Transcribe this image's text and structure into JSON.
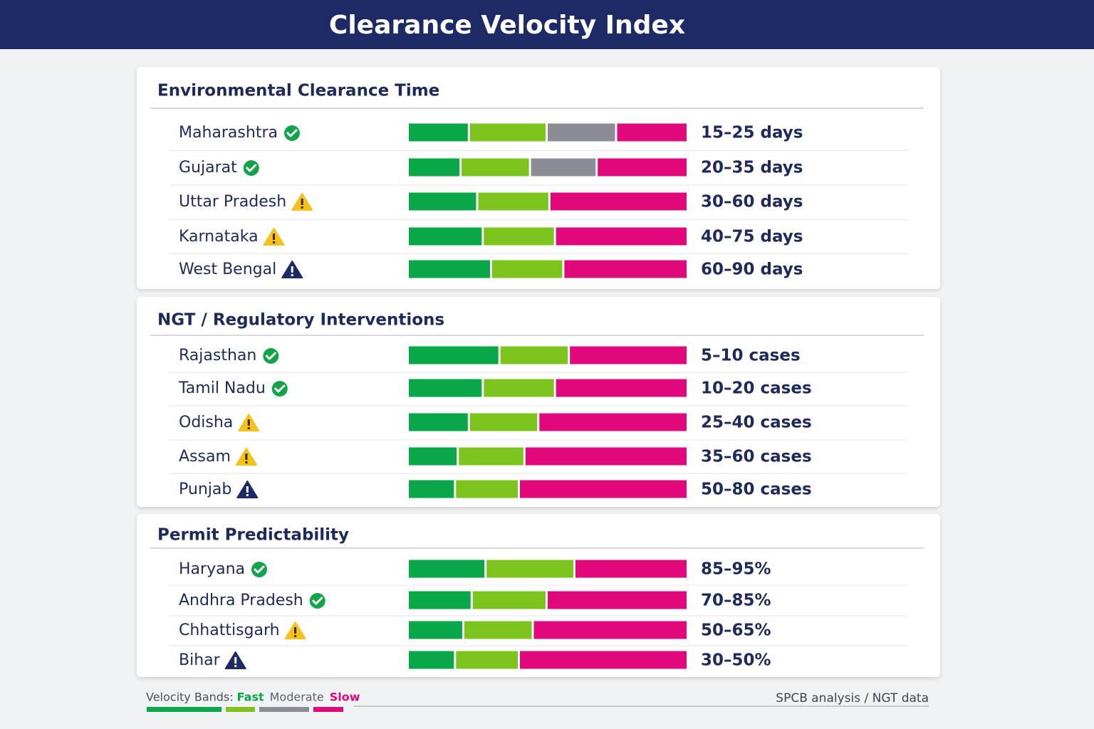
{
  "header": {
    "title": "Clearance Velocity Index"
  },
  "sections": [
    {
      "title": "Environmental Clearance Time",
      "rows": [
        {
          "label": "Maharashtra",
          "status": "ok",
          "bands": [
            0,
            1,
            2,
            3
          ],
          "segments": [
            22,
            28,
            25,
            25
          ],
          "value": "15–25 days"
        },
        {
          "label": "Gujarat",
          "status": "ok",
          "bands": [
            0,
            1,
            2,
            3
          ],
          "segments": [
            19,
            25,
            24,
            32
          ],
          "value": "20–35 days"
        },
        {
          "label": "Uttar Pradesh",
          "status": "warn",
          "bands": [
            0,
            1,
            3
          ],
          "segments": [
            25,
            26,
            49
          ],
          "value": "30–60 days"
        },
        {
          "label": "Karnataka",
          "status": "warn",
          "bands": [
            0,
            1,
            3
          ],
          "segments": [
            27,
            26,
            47
          ],
          "value": "40–75 days"
        },
        {
          "label": "West Bengal",
          "status": "alert",
          "bands": [
            0,
            1,
            3
          ],
          "segments": [
            30,
            26,
            44
          ],
          "value": "60–90 days"
        }
      ]
    },
    {
      "title": "NGT / Regulatory Interventions",
      "rows": [
        {
          "label": "Rajasthan",
          "status": "ok",
          "bands": [
            0,
            1,
            3
          ],
          "segments": [
            33,
            25,
            42
          ],
          "value": "5–10 cases"
        },
        {
          "label": "Tamil Nadu",
          "status": "ok",
          "bands": [
            0,
            1,
            3
          ],
          "segments": [
            27,
            26,
            47
          ],
          "value": "10–20 cases"
        },
        {
          "label": "Odisha",
          "status": "warn",
          "bands": [
            0,
            1,
            3
          ],
          "segments": [
            22,
            25,
            53
          ],
          "value": "25–40 cases"
        },
        {
          "label": "Assam",
          "status": "warn",
          "bands": [
            0,
            1,
            3
          ],
          "segments": [
            18,
            24,
            58
          ],
          "value": "35–60 cases"
        },
        {
          "label": "Punjab",
          "status": "alert",
          "bands": [
            0,
            1,
            3
          ],
          "segments": [
            17,
            23,
            60
          ],
          "value": "50–80 cases"
        }
      ]
    },
    {
      "title": "Permit Predictability",
      "rows": [
        {
          "label": "Haryana",
          "status": "ok",
          "bands": [
            0,
            1,
            3
          ],
          "segments": [
            28,
            32,
            40
          ],
          "value": "85–95%"
        },
        {
          "label": "Andhra Pradesh",
          "status": "ok",
          "bands": [
            0,
            1,
            3
          ],
          "segments": [
            23,
            27,
            50
          ],
          "value": "70–85%"
        },
        {
          "label": "Chhattisgarh",
          "status": "warn",
          "bands": [
            0,
            1,
            3
          ],
          "segments": [
            20,
            25,
            55
          ],
          "value": "50–65%"
        },
        {
          "label": "Bihar",
          "status": "alert",
          "bands": [
            0,
            1,
            3
          ],
          "segments": [
            17,
            23,
            60
          ],
          "value": "30–50%"
        }
      ]
    }
  ],
  "legend": {
    "label": "Velocity Bands:",
    "items": [
      {
        "name": "Fast",
        "color": "#0aa64a"
      },
      {
        "name": "Moderate",
        "color": "#5d6170"
      },
      {
        "name": "Slow",
        "color": "#e0087a"
      }
    ],
    "swatches": [
      "#0aa64a",
      "#7dc41f",
      "#8a8d96",
      "#e0087a"
    ]
  },
  "source": "SPCB analysis / NGT data"
}
